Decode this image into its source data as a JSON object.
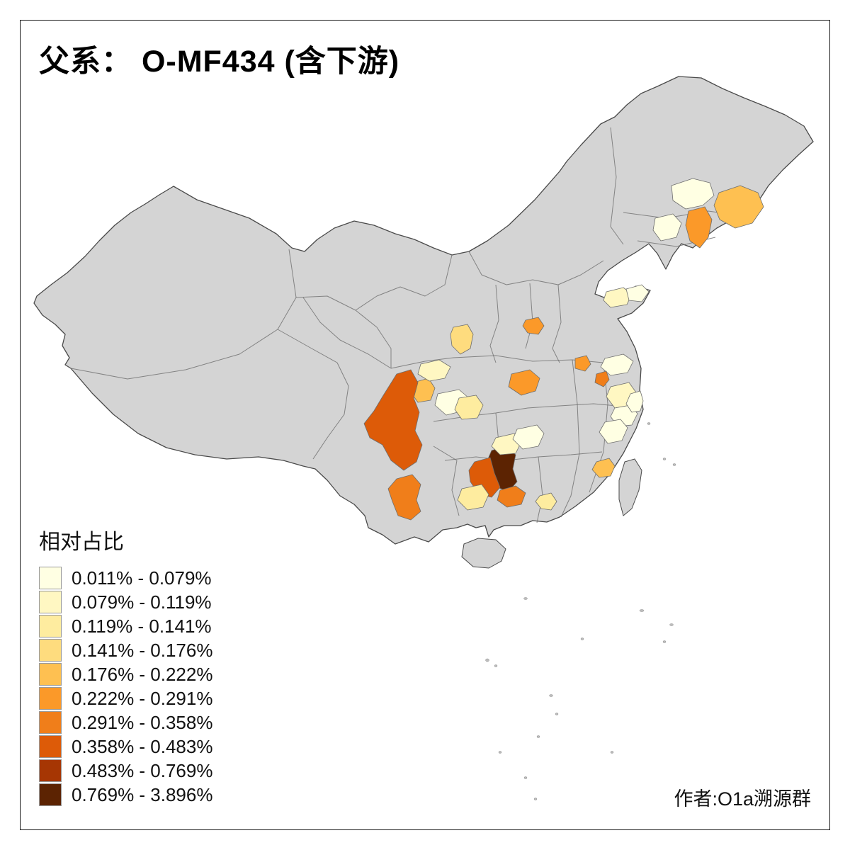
{
  "title": "父系： O-MF434 (含下游)",
  "legend": {
    "title": "相对占比",
    "items": [
      {
        "label": "0.011% - 0.079%",
        "color": "#FFFFE3"
      },
      {
        "label": "0.079% - 0.119%",
        "color": "#FFF7C2"
      },
      {
        "label": "0.119% - 0.141%",
        "color": "#FEEC9F"
      },
      {
        "label": "0.141% - 0.176%",
        "color": "#FEDC7E"
      },
      {
        "label": "0.176% - 0.222%",
        "color": "#FEC051"
      },
      {
        "label": "0.222% - 0.291%",
        "color": "#FB9929"
      },
      {
        "label": "0.291% - 0.358%",
        "color": "#F07E1A"
      },
      {
        "label": "0.358% - 0.483%",
        "color": "#DD5B08"
      },
      {
        "label": "0.483% - 0.769%",
        "color": "#A63603"
      },
      {
        "label": "0.769% - 3.896%",
        "color": "#5C2302"
      }
    ]
  },
  "credit": "作者:O1a溯源群",
  "map": {
    "land_color": "#D4D4D4",
    "boundary_color": "#6E6E6E",
    "outline_color": "#4A4A4A",
    "sea_color": "#FFFFFF"
  }
}
